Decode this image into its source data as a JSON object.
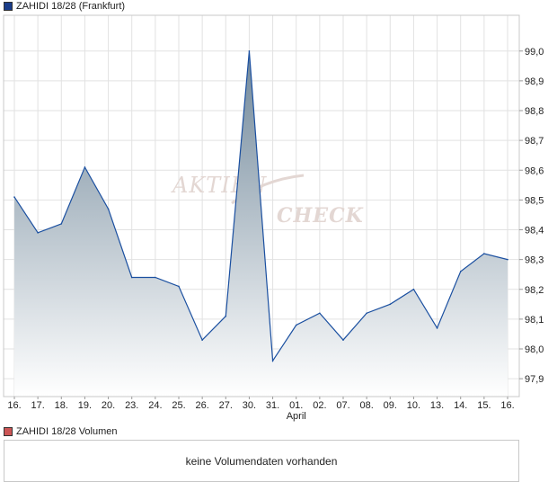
{
  "price_legend": {
    "label": "ZAHIDI 18/28 (Frankfurt)",
    "color": "#1a3d8a"
  },
  "volume_legend": {
    "label": "ZAHIDI 18/28 Volumen",
    "color": "#cc5555"
  },
  "volume_message": "keine Volumendaten vorhanden",
  "watermark": {
    "line1": "AKTIEN",
    "line2": "CHECK"
  },
  "colors": {
    "line": "#1a4fa0",
    "grid": "#e2e2e2",
    "fill_top": "#71889a",
    "fill_bottom": "#ffffff"
  },
  "chart_data": {
    "type": "area",
    "title": "ZAHIDI 18/28 (Frankfurt)",
    "x": [
      "16.",
      "17.",
      "18.",
      "19.",
      "20.",
      "23.",
      "24.",
      "25.",
      "26.",
      "27.",
      "30.",
      "31.",
      "01.",
      "02.",
      "07.",
      "08.",
      "09.",
      "10.",
      "13.",
      "14.",
      "15.",
      "16."
    ],
    "x_month_label": {
      "index": 12,
      "text": "April"
    },
    "series": [
      {
        "name": "ZAHIDI 18/28 (Frankfurt)",
        "values": [
          98.51,
          98.39,
          98.42,
          98.61,
          98.47,
          98.24,
          98.24,
          98.21,
          98.03,
          98.11,
          99.0,
          97.96,
          98.08,
          98.12,
          98.03,
          98.12,
          98.15,
          98.2,
          98.07,
          98.26,
          98.32,
          98.3
        ]
      }
    ],
    "yticks": [
      97.9,
      98.0,
      98.1,
      98.2,
      98.3,
      98.4,
      98.5,
      98.6,
      98.7,
      98.8,
      98.9,
      99.0
    ],
    "ytick_labels": [
      "97,9",
      "98,0",
      "98,1",
      "98,2",
      "98,3",
      "98,4",
      "98,5",
      "98,6",
      "98,7",
      "98,8",
      "98,9",
      "99,0"
    ],
    "ylim": [
      97.84,
      99.12
    ],
    "y_axis_position": "right",
    "grid": true
  }
}
